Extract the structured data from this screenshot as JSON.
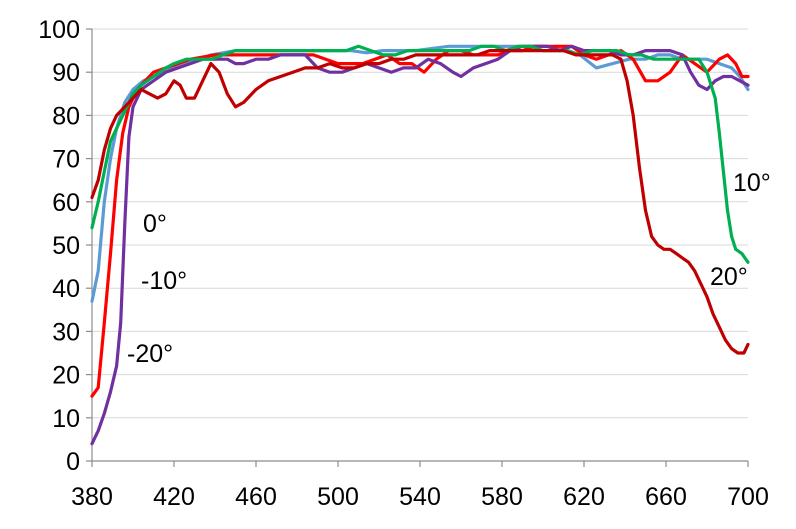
{
  "chart_data": {
    "type": "line",
    "title": "",
    "xlabel": "",
    "ylabel": "",
    "xlim": [
      380,
      700
    ],
    "ylim": [
      0,
      100
    ],
    "x_ticks": [
      380,
      420,
      460,
      500,
      540,
      580,
      620,
      660,
      700
    ],
    "y_ticks": [
      0,
      10,
      20,
      30,
      40,
      50,
      60,
      70,
      80,
      90,
      100
    ],
    "grid": "horizontal",
    "legend": "none",
    "series": [
      {
        "name": "0°",
        "color": "#5B9BD5",
        "points": [
          [
            380,
            37
          ],
          [
            383,
            44
          ],
          [
            386,
            60
          ],
          [
            389,
            70
          ],
          [
            392,
            77
          ],
          [
            396,
            83
          ],
          [
            400,
            86
          ],
          [
            405,
            88
          ],
          [
            410,
            89
          ],
          [
            415,
            90
          ],
          [
            420,
            91
          ],
          [
            426,
            92
          ],
          [
            432,
            93
          ],
          [
            438,
            94
          ],
          [
            444,
            94.5
          ],
          [
            450,
            95
          ],
          [
            458,
            95
          ],
          [
            466,
            95
          ],
          [
            474,
            95
          ],
          [
            482,
            95
          ],
          [
            490,
            95
          ],
          [
            498,
            95
          ],
          [
            506,
            95
          ],
          [
            514,
            94.5
          ],
          [
            522,
            95
          ],
          [
            530,
            95
          ],
          [
            538,
            95
          ],
          [
            546,
            95.5
          ],
          [
            554,
            96
          ],
          [
            562,
            96
          ],
          [
            570,
            96
          ],
          [
            578,
            96
          ],
          [
            586,
            96
          ],
          [
            594,
            96
          ],
          [
            602,
            96
          ],
          [
            610,
            95
          ],
          [
            618,
            94
          ],
          [
            626,
            91
          ],
          [
            634,
            92
          ],
          [
            642,
            93
          ],
          [
            650,
            93
          ],
          [
            656,
            94
          ],
          [
            662,
            94
          ],
          [
            668,
            93
          ],
          [
            674,
            93
          ],
          [
            680,
            93
          ],
          [
            686,
            92
          ],
          [
            692,
            91
          ],
          [
            696,
            89
          ],
          [
            700,
            86
          ]
        ]
      },
      {
        "name": "-10°",
        "color": "#FF0000",
        "points": [
          [
            380,
            15
          ],
          [
            383,
            17
          ],
          [
            386,
            32
          ],
          [
            389,
            48
          ],
          [
            392,
            65
          ],
          [
            395,
            76
          ],
          [
            398,
            82
          ],
          [
            402,
            86
          ],
          [
            406,
            88
          ],
          [
            410,
            90
          ],
          [
            416,
            91
          ],
          [
            422,
            92
          ],
          [
            428,
            93
          ],
          [
            434,
            93.5
          ],
          [
            440,
            94
          ],
          [
            448,
            94
          ],
          [
            456,
            94
          ],
          [
            464,
            94
          ],
          [
            472,
            94
          ],
          [
            480,
            94
          ],
          [
            488,
            94
          ],
          [
            494,
            93
          ],
          [
            500,
            92
          ],
          [
            506,
            92
          ],
          [
            512,
            92
          ],
          [
            518,
            93
          ],
          [
            524,
            94
          ],
          [
            530,
            92
          ],
          [
            536,
            92
          ],
          [
            542,
            90
          ],
          [
            548,
            93
          ],
          [
            554,
            95
          ],
          [
            560,
            95
          ],
          [
            566,
            94
          ],
          [
            572,
            94
          ],
          [
            578,
            94
          ],
          [
            584,
            95
          ],
          [
            590,
            95
          ],
          [
            596,
            96
          ],
          [
            602,
            96
          ],
          [
            608,
            96
          ],
          [
            614,
            96
          ],
          [
            620,
            94
          ],
          [
            626,
            93
          ],
          [
            632,
            94
          ],
          [
            638,
            95
          ],
          [
            644,
            93
          ],
          [
            650,
            88
          ],
          [
            656,
            88
          ],
          [
            662,
            90
          ],
          [
            668,
            94
          ],
          [
            674,
            92
          ],
          [
            680,
            90
          ],
          [
            686,
            93
          ],
          [
            690,
            94
          ],
          [
            694,
            92
          ],
          [
            697,
            89
          ],
          [
            700,
            89
          ]
        ]
      },
      {
        "name": "-20°",
        "color": "#7030A0",
        "points": [
          [
            380,
            4
          ],
          [
            383,
            7
          ],
          [
            386,
            11
          ],
          [
            389,
            16
          ],
          [
            392,
            22
          ],
          [
            394,
            32
          ],
          [
            396,
            55
          ],
          [
            398,
            75
          ],
          [
            400,
            82
          ],
          [
            404,
            86
          ],
          [
            410,
            88
          ],
          [
            416,
            90
          ],
          [
            422,
            91
          ],
          [
            428,
            92
          ],
          [
            434,
            93
          ],
          [
            440,
            93
          ],
          [
            446,
            93
          ],
          [
            450,
            92
          ],
          [
            454,
            92
          ],
          [
            460,
            93
          ],
          [
            466,
            93
          ],
          [
            472,
            94
          ],
          [
            478,
            94
          ],
          [
            484,
            94
          ],
          [
            490,
            91
          ],
          [
            496,
            90
          ],
          [
            502,
            90
          ],
          [
            508,
            91
          ],
          [
            514,
            92
          ],
          [
            520,
            91
          ],
          [
            526,
            90
          ],
          [
            532,
            91
          ],
          [
            538,
            91
          ],
          [
            544,
            93
          ],
          [
            550,
            92
          ],
          [
            556,
            90
          ],
          [
            560,
            89
          ],
          [
            566,
            91
          ],
          [
            572,
            92
          ],
          [
            578,
            93
          ],
          [
            584,
            95
          ],
          [
            590,
            96
          ],
          [
            596,
            96
          ],
          [
            602,
            96
          ],
          [
            608,
            95
          ],
          [
            614,
            96
          ],
          [
            620,
            95
          ],
          [
            626,
            95
          ],
          [
            632,
            95
          ],
          [
            638,
            94
          ],
          [
            644,
            94
          ],
          [
            650,
            95
          ],
          [
            656,
            95
          ],
          [
            662,
            95
          ],
          [
            668,
            94
          ],
          [
            672,
            90
          ],
          [
            676,
            87
          ],
          [
            680,
            86
          ],
          [
            684,
            88
          ],
          [
            688,
            89
          ],
          [
            692,
            89
          ],
          [
            696,
            88
          ],
          [
            700,
            87
          ]
        ]
      },
      {
        "name": "10°",
        "color": "#00B050",
        "points": [
          [
            380,
            54
          ],
          [
            383,
            60
          ],
          [
            386,
            67
          ],
          [
            389,
            74
          ],
          [
            392,
            77
          ],
          [
            396,
            81
          ],
          [
            400,
            85
          ],
          [
            404,
            87
          ],
          [
            410,
            89
          ],
          [
            416,
            91
          ],
          [
            420,
            92
          ],
          [
            426,
            93
          ],
          [
            432,
            93
          ],
          [
            438,
            93
          ],
          [
            444,
            94
          ],
          [
            450,
            95
          ],
          [
            456,
            95
          ],
          [
            462,
            95
          ],
          [
            468,
            95
          ],
          [
            474,
            95
          ],
          [
            480,
            95
          ],
          [
            486,
            95
          ],
          [
            492,
            95
          ],
          [
            498,
            95
          ],
          [
            504,
            95
          ],
          [
            510,
            96
          ],
          [
            516,
            95
          ],
          [
            522,
            94
          ],
          [
            528,
            94
          ],
          [
            534,
            95
          ],
          [
            540,
            95
          ],
          [
            546,
            95
          ],
          [
            552,
            95
          ],
          [
            558,
            95
          ],
          [
            564,
            95
          ],
          [
            570,
            96
          ],
          [
            576,
            96
          ],
          [
            582,
            95
          ],
          [
            588,
            96
          ],
          [
            594,
            96
          ],
          [
            600,
            95
          ],
          [
            606,
            95
          ],
          [
            612,
            95
          ],
          [
            618,
            94
          ],
          [
            624,
            95
          ],
          [
            630,
            95
          ],
          [
            636,
            95
          ],
          [
            642,
            94
          ],
          [
            648,
            94
          ],
          [
            654,
            93
          ],
          [
            660,
            93
          ],
          [
            666,
            93
          ],
          [
            672,
            93
          ],
          [
            676,
            93
          ],
          [
            680,
            90
          ],
          [
            684,
            84
          ],
          [
            686,
            76
          ],
          [
            688,
            67
          ],
          [
            690,
            58
          ],
          [
            692,
            52
          ],
          [
            694,
            49
          ],
          [
            697,
            48
          ],
          [
            700,
            46
          ]
        ]
      },
      {
        "name": "20°",
        "color": "#C00000",
        "points": [
          [
            380,
            61
          ],
          [
            383,
            65
          ],
          [
            386,
            72
          ],
          [
            389,
            77
          ],
          [
            392,
            80
          ],
          [
            396,
            82
          ],
          [
            400,
            84
          ],
          [
            404,
            86
          ],
          [
            408,
            85
          ],
          [
            412,
            84
          ],
          [
            416,
            85
          ],
          [
            420,
            88
          ],
          [
            423,
            87
          ],
          [
            426,
            84
          ],
          [
            430,
            84
          ],
          [
            434,
            88
          ],
          [
            438,
            92
          ],
          [
            442,
            90
          ],
          [
            446,
            85
          ],
          [
            450,
            82
          ],
          [
            454,
            83
          ],
          [
            460,
            86
          ],
          [
            466,
            88
          ],
          [
            472,
            89
          ],
          [
            478,
            90
          ],
          [
            484,
            91
          ],
          [
            490,
            91
          ],
          [
            496,
            92
          ],
          [
            502,
            91
          ],
          [
            508,
            91
          ],
          [
            514,
            92
          ],
          [
            520,
            92
          ],
          [
            526,
            93
          ],
          [
            532,
            93
          ],
          [
            538,
            94
          ],
          [
            544,
            94
          ],
          [
            550,
            94
          ],
          [
            556,
            94
          ],
          [
            562,
            94
          ],
          [
            568,
            94
          ],
          [
            574,
            95
          ],
          [
            580,
            95
          ],
          [
            586,
            95
          ],
          [
            592,
            95
          ],
          [
            598,
            95
          ],
          [
            604,
            95
          ],
          [
            610,
            95
          ],
          [
            616,
            94
          ],
          [
            622,
            94
          ],
          [
            628,
            94
          ],
          [
            634,
            94
          ],
          [
            638,
            93
          ],
          [
            641,
            88
          ],
          [
            644,
            80
          ],
          [
            647,
            68
          ],
          [
            650,
            58
          ],
          [
            653,
            52
          ],
          [
            656,
            50
          ],
          [
            659,
            49
          ],
          [
            662,
            49
          ],
          [
            665,
            48
          ],
          [
            668,
            47
          ],
          [
            671,
            46
          ],
          [
            674,
            44
          ],
          [
            677,
            41
          ],
          [
            680,
            38
          ],
          [
            683,
            34
          ],
          [
            686,
            31
          ],
          [
            689,
            28
          ],
          [
            692,
            26
          ],
          [
            695,
            25
          ],
          [
            698,
            25
          ],
          [
            700,
            27
          ]
        ]
      }
    ],
    "annotations": [
      {
        "text": "0°",
        "series": "0°"
      },
      {
        "text": "-10°",
        "series": "-10°"
      },
      {
        "text": "-20°",
        "series": "-20°"
      },
      {
        "text": "10°",
        "series": "10°"
      },
      {
        "text": "20°",
        "series": "20°"
      }
    ]
  }
}
